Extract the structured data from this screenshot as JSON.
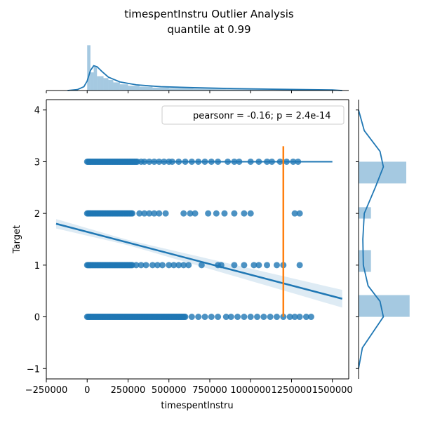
{
  "chart_data": {
    "type": "scatter",
    "title": "timespentInstru Outlier Analysis",
    "subtitle": "quantile at 0.99",
    "xlabel": "timespentInstru",
    "ylabel": "Target",
    "xlim": [
      -250000,
      1600000
    ],
    "ylim": [
      -1.2,
      4.2
    ],
    "x_ticks": [
      -250000,
      0,
      250000,
      500000,
      750000,
      1000000,
      1250000,
      1500000
    ],
    "x_tick_labels": [
      "−250000",
      "0",
      "250000",
      "500000",
      "750000",
      "1000000",
      "1250000",
      "1500000"
    ],
    "y_ticks": [
      -1,
      0,
      1,
      2,
      3,
      4
    ],
    "y_tick_labels": [
      "−1",
      "0",
      "1",
      "2",
      "3",
      "4"
    ],
    "grid": false,
    "legend": {
      "text": "pearsonr = -0.16; p = 2.4e-14",
      "placement": "top-right"
    },
    "colors": {
      "points": "#1f77b4",
      "regression": "#1f77b4",
      "quantile_line": "#ff7f0e",
      "ci_band": "#1f77b4"
    },
    "series": [
      {
        "target": 3,
        "dense_range": [
          0,
          310000
        ],
        "x": [
          330000,
          350000,
          380000,
          410000,
          440000,
          470000,
          500000,
          520000,
          560000,
          600000,
          640000,
          680000,
          720000,
          760000,
          800000,
          860000,
          900000,
          930000,
          1000000,
          1050000,
          1100000,
          1130000,
          1180000,
          1220000,
          1260000,
          1290000
        ]
      },
      {
        "target": 2,
        "dense_range": [
          0,
          280000
        ],
        "x": [
          320000,
          350000,
          380000,
          410000,
          440000,
          480000,
          590000,
          630000,
          660000,
          740000,
          790000,
          840000,
          900000,
          960000,
          1000000,
          1270000,
          1300000
        ]
      },
      {
        "target": 1,
        "dense_range": [
          0,
          280000
        ],
        "x": [
          300000,
          330000,
          360000,
          400000,
          430000,
          460000,
          500000,
          530000,
          560000,
          590000,
          620000,
          700000,
          800000,
          820000,
          900000,
          960000,
          1020000,
          1050000,
          1100000,
          1160000,
          1200000,
          1300000
        ]
      },
      {
        "target": 0,
        "dense_range": [
          0,
          600000
        ],
        "x": [
          640000,
          680000,
          720000,
          760000,
          800000,
          850000,
          880000,
          920000,
          960000,
          1000000,
          1040000,
          1080000,
          1120000,
          1160000,
          1200000,
          1240000,
          1270000,
          1300000,
          1340000,
          1370000
        ]
      }
    ],
    "regression": {
      "x": [
        -190000,
        1560000
      ],
      "y": [
        1.8,
        0.35
      ]
    },
    "quantile_line": {
      "quantile": 0.99,
      "x": 1200000,
      "y": [
        0,
        3.3
      ]
    },
    "top_marginal": {
      "variable": "timespentInstru",
      "hist_bins": [
        [
          0,
          20000,
          0.95
        ],
        [
          20000,
          40000,
          0.38
        ],
        [
          40000,
          60000,
          0.5
        ],
        [
          60000,
          80000,
          0.3
        ],
        [
          80000,
          100000,
          0.3
        ],
        [
          100000,
          130000,
          0.26
        ],
        [
          130000,
          160000,
          0.22
        ],
        [
          160000,
          200000,
          0.17
        ],
        [
          200000,
          250000,
          0.13
        ],
        [
          250000,
          320000,
          0.1
        ],
        [
          320000,
          400000,
          0.08
        ],
        [
          400000,
          500000,
          0.06
        ],
        [
          500000,
          650000,
          0.05
        ],
        [
          650000,
          850000,
          0.04
        ],
        [
          850000,
          1100000,
          0.03
        ],
        [
          1100000,
          1500000,
          0.02
        ]
      ],
      "kde": [
        [
          -120000,
          0.0
        ],
        [
          -60000,
          0.02
        ],
        [
          -20000,
          0.08
        ],
        [
          0,
          0.2
        ],
        [
          20000,
          0.42
        ],
        [
          40000,
          0.52
        ],
        [
          60000,
          0.5
        ],
        [
          90000,
          0.4
        ],
        [
          130000,
          0.28
        ],
        [
          200000,
          0.18
        ],
        [
          300000,
          0.12
        ],
        [
          450000,
          0.08
        ],
        [
          650000,
          0.06
        ],
        [
          900000,
          0.04
        ],
        [
          1200000,
          0.025
        ],
        [
          1500000,
          0.012
        ],
        [
          1560000,
          0.0
        ]
      ]
    },
    "right_marginal": {
      "variable": "Target",
      "hist_bins": [
        [
          2.58,
          3.0,
          1.0
        ],
        [
          1.9,
          2.12,
          0.26
        ],
        [
          0.87,
          1.29,
          0.26
        ],
        [
          0.0,
          0.42,
          1.07
        ]
      ],
      "kde": [
        [
          -1.0,
          0.0
        ],
        [
          -0.6,
          0.08
        ],
        [
          -0.3,
          0.3
        ],
        [
          0.0,
          0.52
        ],
        [
          0.3,
          0.45
        ],
        [
          0.6,
          0.2
        ],
        [
          1.0,
          0.1
        ],
        [
          1.5,
          0.09
        ],
        [
          2.0,
          0.12
        ],
        [
          2.5,
          0.35
        ],
        [
          2.9,
          0.52
        ],
        [
          3.2,
          0.45
        ],
        [
          3.6,
          0.12
        ],
        [
          4.0,
          0.0
        ]
      ]
    }
  }
}
